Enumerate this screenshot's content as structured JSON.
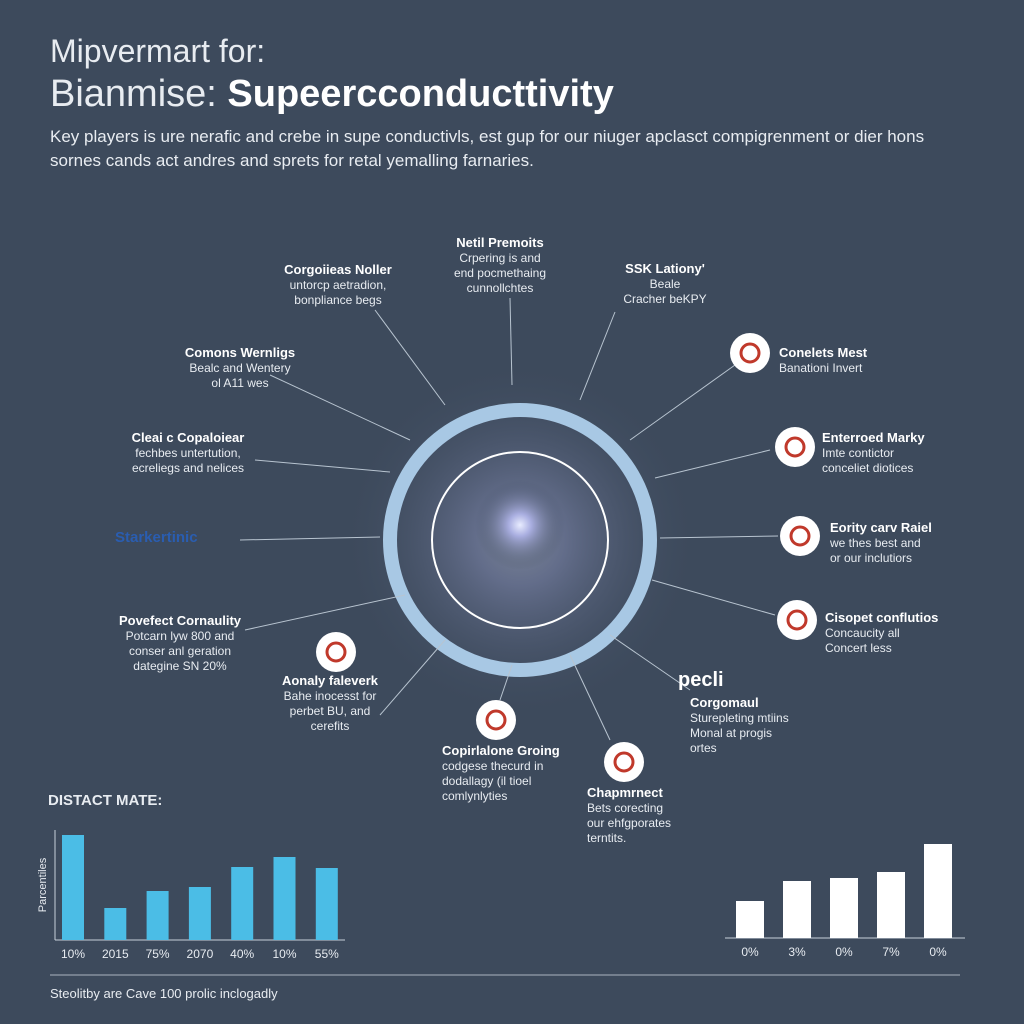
{
  "header": {
    "title_line1": "Mipvermart for:",
    "title_prefix": "Bianmise:",
    "title_emphasis": "Supeercconducttivity",
    "subtitle": [
      "Key players is ure nerafic and crebe in supe conductivls, est gup for our niuger apclasct compigrenment or dier hons",
      "sornes cands act andres and sprets for retal yemalling farnaries."
    ]
  },
  "nodes": [
    {
      "title": "Corgoiieas Noller",
      "lines": [
        "untorcp aetradion,",
        "bonpliance begs"
      ]
    },
    {
      "title": "Netil Premoits",
      "lines": [
        "Crpering is and",
        "end pocmethaing",
        "cunnollchtes"
      ]
    },
    {
      "title": "SSK Lationy'",
      "lines": [
        "Beale",
        "Cracher beKPY"
      ]
    },
    {
      "title": "Conelets Mest",
      "lines": [
        "Banationi Invert"
      ]
    },
    {
      "title": "Enterroed Marky",
      "lines": [
        "Imte contictor",
        "conceliet diotices"
      ]
    },
    {
      "title": "Eority carv Raiel",
      "lines": [
        "we thes best and",
        "or our inclutiors"
      ]
    },
    {
      "title": "Cisopet conflutios",
      "lines": [
        "Concaucity all",
        "Concert less"
      ]
    },
    {
      "logo": "pecli",
      "title": "Corgomaul",
      "lines": [
        "Sturepleting mtiins",
        "Monal at progis",
        "ortes"
      ]
    },
    {
      "title": "Chapmrnect",
      "lines": [
        "Bets corecting",
        "our ehfgporates",
        "terntits."
      ]
    },
    {
      "title": "Copirlalone Groing",
      "lines": [
        "codgese thecurd in",
        "dodallagy (il tioel",
        "comlynlyties"
      ]
    },
    {
      "title": "Aonaly faleverk",
      "lines": [
        "Bahe inocesst for",
        "perbet BU, and",
        "cerefits"
      ]
    },
    {
      "title": "Povefect Cornaulity",
      "lines": [
        "Potcarn lyw 800 and",
        "conser anl geration",
        "dategine SN 20%"
      ]
    },
    {
      "logo": "Starkertinic"
    },
    {
      "title": "Cleai c Copaloiear",
      "lines": [
        "fechbes untertution,",
        "ecreliegs and nelices"
      ]
    },
    {
      "title": "Comons Wernligs",
      "lines": [
        "Bealc and Wentery",
        "ol A11 wes"
      ]
    }
  ],
  "section_title": "DISTACT MATE:",
  "chart_data": [
    {
      "type": "bar",
      "y_label": "Parcentiles",
      "categories": [
        "10%",
        "2015",
        "75%",
        "2070",
        "40%",
        "10%",
        "55%"
      ],
      "values": [
        105,
        32,
        49,
        53,
        73,
        83,
        72
      ],
      "color": "#4bbde6",
      "ylim": [
        0,
        110
      ]
    },
    {
      "type": "bar",
      "categories": [
        "0%",
        "3%",
        "0%",
        "7%",
        "0%"
      ],
      "values": [
        37,
        57,
        60,
        66,
        94
      ],
      "color": "#ffffff",
      "ylim": [
        0,
        100
      ]
    }
  ],
  "footer": "Steolitby are Cave 100 prolic inclogadly"
}
